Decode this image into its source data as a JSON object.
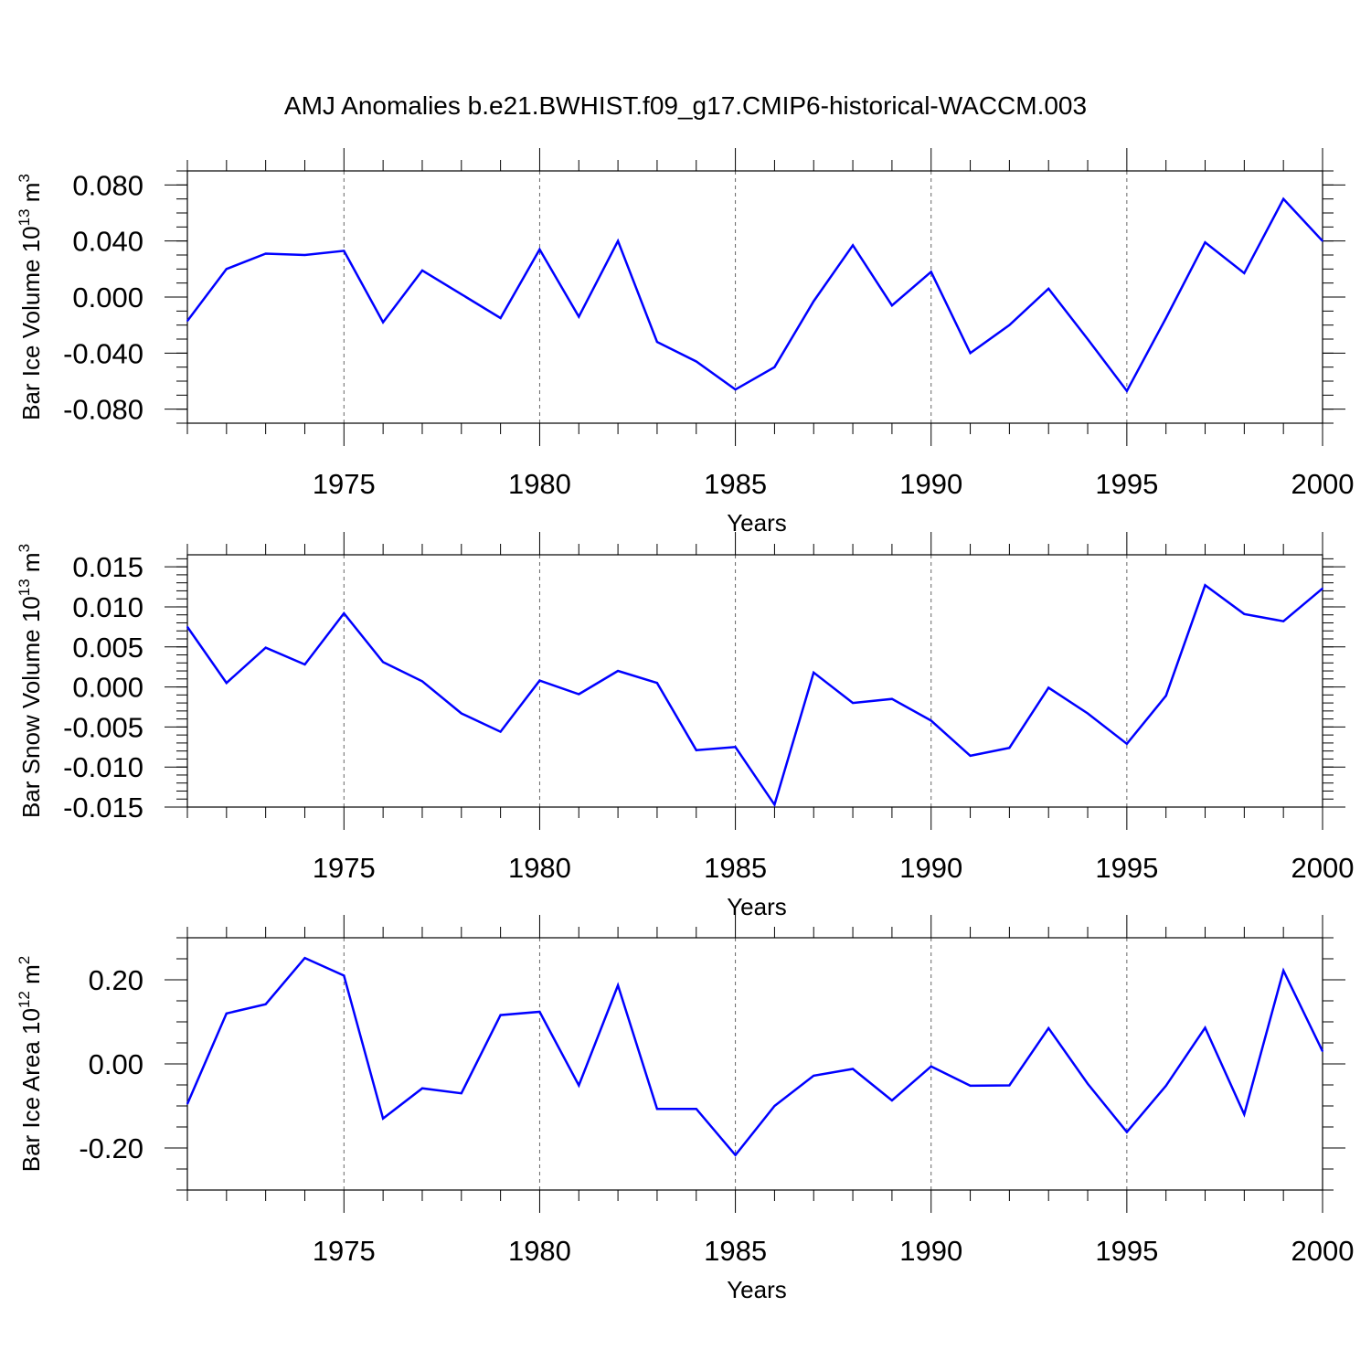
{
  "title": "AMJ Anomalies b.e21.BWHIST.f09_g17.CMIP6-historical-WACCM.003",
  "line_color": "#0000ff",
  "chart_data": [
    {
      "type": "line",
      "title": "AMJ Anomalies b.e21.BWHIST.f09_g17.CMIP6-historical-WACCM.003",
      "xlabel": "Years",
      "ylabel": {
        "text": "Bar Ice Volume 10",
        "exp": "13",
        "unit": " m",
        "unit_exp": "3"
      },
      "xlim": [
        1971,
        2000
      ],
      "ylim": [
        -0.09,
        0.09
      ],
      "x_ticks": [
        "1975",
        "1980",
        "1985",
        "1990",
        "1995",
        "2000"
      ],
      "y_ticks": [
        "0.080",
        "0.040",
        "0.000",
        "-0.040",
        "-0.080"
      ],
      "y_tick_values": [
        0.08,
        0.04,
        0.0,
        -0.04,
        -0.08
      ],
      "y_minor_step": 0.01,
      "grid": "vertical dashed at major x ticks",
      "x": [
        1971,
        1972,
        1973,
        1974,
        1975,
        1976,
        1977,
        1978,
        1979,
        1980,
        1981,
        1982,
        1983,
        1984,
        1985,
        1986,
        1987,
        1988,
        1989,
        1990,
        1991,
        1992,
        1993,
        1994,
        1995,
        1996,
        1997,
        1998,
        1999,
        2000
      ],
      "series": [
        {
          "values": [
            -0.017,
            0.02,
            0.031,
            0.03,
            0.033,
            -0.018,
            0.019,
            0.002,
            -0.015,
            0.034,
            -0.014,
            0.04,
            -0.032,
            -0.046,
            -0.066,
            -0.05,
            -0.003,
            0.037,
            -0.006,
            0.018,
            -0.04,
            -0.02,
            0.006,
            -0.03,
            -0.067,
            -0.015,
            0.039,
            0.017,
            0.07,
            0.04
          ]
        }
      ]
    },
    {
      "type": "line",
      "xlabel": "Years",
      "ylabel": {
        "text": "Bar Snow Volume 10",
        "exp": "13",
        "unit": " m",
        "unit_exp": "3"
      },
      "xlim": [
        1971,
        2000
      ],
      "ylim": [
        -0.015,
        0.0165
      ],
      "x_ticks": [
        "1975",
        "1980",
        "1985",
        "1990",
        "1995",
        "2000"
      ],
      "y_ticks": [
        "0.015",
        "0.010",
        "0.005",
        "0.000",
        "-0.005",
        "-0.010",
        "-0.015"
      ],
      "y_tick_values": [
        0.015,
        0.01,
        0.005,
        0.0,
        -0.005,
        -0.01,
        -0.015
      ],
      "y_minor_step": 0.001,
      "grid": "vertical dashed at major x ticks",
      "x": [
        1971,
        1972,
        1973,
        1974,
        1975,
        1976,
        1977,
        1978,
        1979,
        1980,
        1981,
        1982,
        1983,
        1984,
        1985,
        1986,
        1987,
        1988,
        1989,
        1990,
        1991,
        1992,
        1993,
        1994,
        1995,
        1996,
        1997,
        1998,
        1999,
        2000
      ],
      "series": [
        {
          "values": [
            0.0075,
            0.0005,
            0.0049,
            0.0028,
            0.0092,
            0.0031,
            0.0007,
            -0.0033,
            -0.0056,
            0.0008,
            -0.0009,
            0.002,
            0.0005,
            -0.0079,
            -0.0075,
            -0.0147,
            0.0018,
            -0.002,
            -0.0015,
            -0.0042,
            -0.0086,
            -0.0076,
            -0.0001,
            -0.0033,
            -0.0071,
            -0.0011,
            0.0127,
            0.0091,
            0.0082,
            0.0123
          ]
        }
      ]
    },
    {
      "type": "line",
      "xlabel": "Years",
      "ylabel": {
        "text": "Bar Ice Area 10",
        "exp": "12",
        "unit": " m",
        "unit_exp": "2"
      },
      "xlim": [
        1971,
        2000
      ],
      "ylim": [
        -0.3,
        0.3
      ],
      "x_ticks": [
        "1975",
        "1980",
        "1985",
        "1990",
        "1995",
        "2000"
      ],
      "y_ticks": [
        "0.20",
        "0.00",
        "-0.20"
      ],
      "y_tick_values": [
        0.2,
        0.0,
        -0.2
      ],
      "y_minor_step": 0.05,
      "grid": "vertical dashed at major x ticks",
      "x": [
        1971,
        1972,
        1973,
        1974,
        1975,
        1976,
        1977,
        1978,
        1979,
        1980,
        1981,
        1982,
        1983,
        1984,
        1985,
        1986,
        1987,
        1988,
        1989,
        1990,
        1991,
        1992,
        1993,
        1994,
        1995,
        1996,
        1997,
        1998,
        1999,
        2000
      ],
      "series": [
        {
          "values": [
            -0.095,
            0.12,
            0.142,
            0.252,
            0.21,
            -0.13,
            -0.058,
            -0.07,
            0.116,
            0.124,
            -0.051,
            0.187,
            -0.107,
            -0.107,
            -0.217,
            -0.1,
            -0.028,
            -0.012,
            -0.087,
            -0.006,
            -0.052,
            -0.051,
            0.085,
            -0.047,
            -0.162,
            -0.052,
            0.086,
            -0.12,
            0.222,
            0.03
          ]
        }
      ]
    }
  ]
}
